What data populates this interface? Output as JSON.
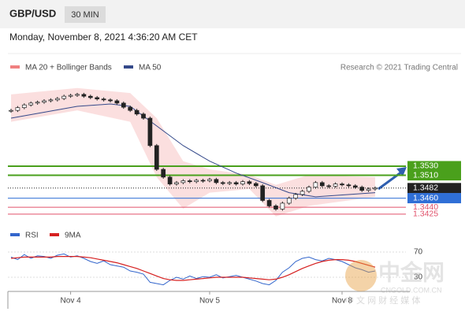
{
  "chart_data": {
    "type": "candlestick",
    "title": "GBP/USD",
    "timeframe": "30 MIN",
    "subtitle": "Monday, November 8, 2021 4:36:20 AM CET",
    "credit": "Research © 2021 Trading Central",
    "close": [
      1.3652,
      1.3658,
      1.3664,
      1.3668,
      1.367,
      1.3673,
      1.3675,
      1.3678,
      1.3683,
      1.3685,
      1.3687,
      1.3683,
      1.368,
      1.3677,
      1.3675,
      1.3673,
      1.3668,
      1.3659,
      1.3652,
      1.3644,
      1.3635,
      1.3575,
      1.3523,
      1.3506,
      1.3491,
      1.3494,
      1.3498,
      1.3496,
      1.3499,
      1.3498,
      1.3501,
      1.3494,
      1.3492,
      1.3494,
      1.3491,
      1.3496,
      1.3492,
      1.3487,
      1.3455,
      1.3443,
      1.3436,
      1.3449,
      1.346,
      1.3468,
      1.3475,
      1.3484,
      1.3494,
      1.3487,
      1.3486,
      1.3491,
      1.3489,
      1.3487,
      1.3484,
      1.3477,
      1.348,
      1.3482
    ],
    "bands": {
      "name": "MA 20 + Bollinger Bands",
      "color": "#f08080",
      "x": [
        0,
        10,
        18,
        22,
        26,
        30,
        36,
        40,
        45,
        55
      ],
      "upper": [
        1.3687,
        1.3701,
        1.369,
        1.3635,
        1.3541,
        1.3523,
        1.3511,
        1.3489,
        1.3511,
        1.3506
      ],
      "lower": [
        1.3627,
        1.3652,
        1.3627,
        1.3506,
        1.3437,
        1.3472,
        1.348,
        1.342,
        1.3443,
        1.3463
      ]
    },
    "ma50": {
      "name": "MA 50",
      "color": "#34498a",
      "x": [
        0,
        10,
        15,
        18,
        22,
        26,
        30,
        34,
        38,
        42,
        46,
        55
      ],
      "values": [
        1.3635,
        1.3661,
        1.3666,
        1.3661,
        1.3618,
        1.3575,
        1.3541,
        1.3515,
        1.3494,
        1.3472,
        1.3463,
        1.3472
      ]
    },
    "levels": [
      {
        "value": 1.353,
        "label": "1.3530",
        "color": "#4aa01c",
        "box": true
      },
      {
        "value": 1.351,
        "label": "1.3510",
        "color": "#4aa01c",
        "box": true
      },
      {
        "value": 1.3482,
        "label": "1.3482",
        "color": "#222222",
        "box": true,
        "dotted": true
      },
      {
        "value": 1.346,
        "label": "1.3460",
        "color": "#2f6fd6",
        "box": true
      },
      {
        "value": 1.344,
        "label": "1.3440",
        "color": "#e0506a",
        "box": false
      },
      {
        "value": 1.3425,
        "label": "1.3425",
        "color": "#e0506a",
        "box": false
      }
    ],
    "ylim": [
      1.3411,
      1.3704
    ],
    "xlim": [
      0,
      55
    ],
    "xticks": [
      {
        "value": 9,
        "label": "Nov 4"
      },
      {
        "value": 30,
        "label": "Nov 5"
      },
      {
        "value": 50,
        "label": "Nov 8"
      }
    ],
    "rsi": {
      "name": "RSI",
      "color": "#3366cc",
      "values": [
        62,
        58,
        66,
        60,
        64,
        63,
        60,
        65,
        67,
        62,
        64,
        60,
        55,
        52,
        56,
        50,
        48,
        46,
        40,
        38,
        35,
        22,
        20,
        18,
        25,
        30,
        27,
        32,
        28,
        31,
        30,
        34,
        29,
        31,
        33,
        30,
        27,
        24,
        20,
        18,
        25,
        38,
        45,
        55,
        60,
        62,
        58,
        56,
        60,
        58,
        55,
        50,
        45,
        42,
        38,
        40
      ],
      "ma": {
        "name": "9MA",
        "color": "#d62020",
        "values": [
          60,
          61,
          62,
          62,
          62,
          62,
          62,
          63,
          63,
          63,
          63,
          62,
          61,
          59,
          57,
          55,
          53,
          50,
          47,
          44,
          40,
          36,
          32,
          28,
          26,
          25,
          25,
          26,
          27,
          28,
          29,
          30,
          30,
          30,
          30,
          30,
          29,
          28,
          27,
          26,
          27,
          30,
          34,
          39,
          44,
          48,
          52,
          55,
          57,
          58,
          58,
          57,
          55,
          52,
          49,
          46
        ]
      },
      "ylim": [
        0,
        100
      ],
      "yticks": [
        70,
        30
      ]
    }
  },
  "watermark": {
    "brand": "中金网",
    "site": "CNGOLD.COM.CN",
    "tagline": "中 文 网 财 经 媒 体"
  }
}
